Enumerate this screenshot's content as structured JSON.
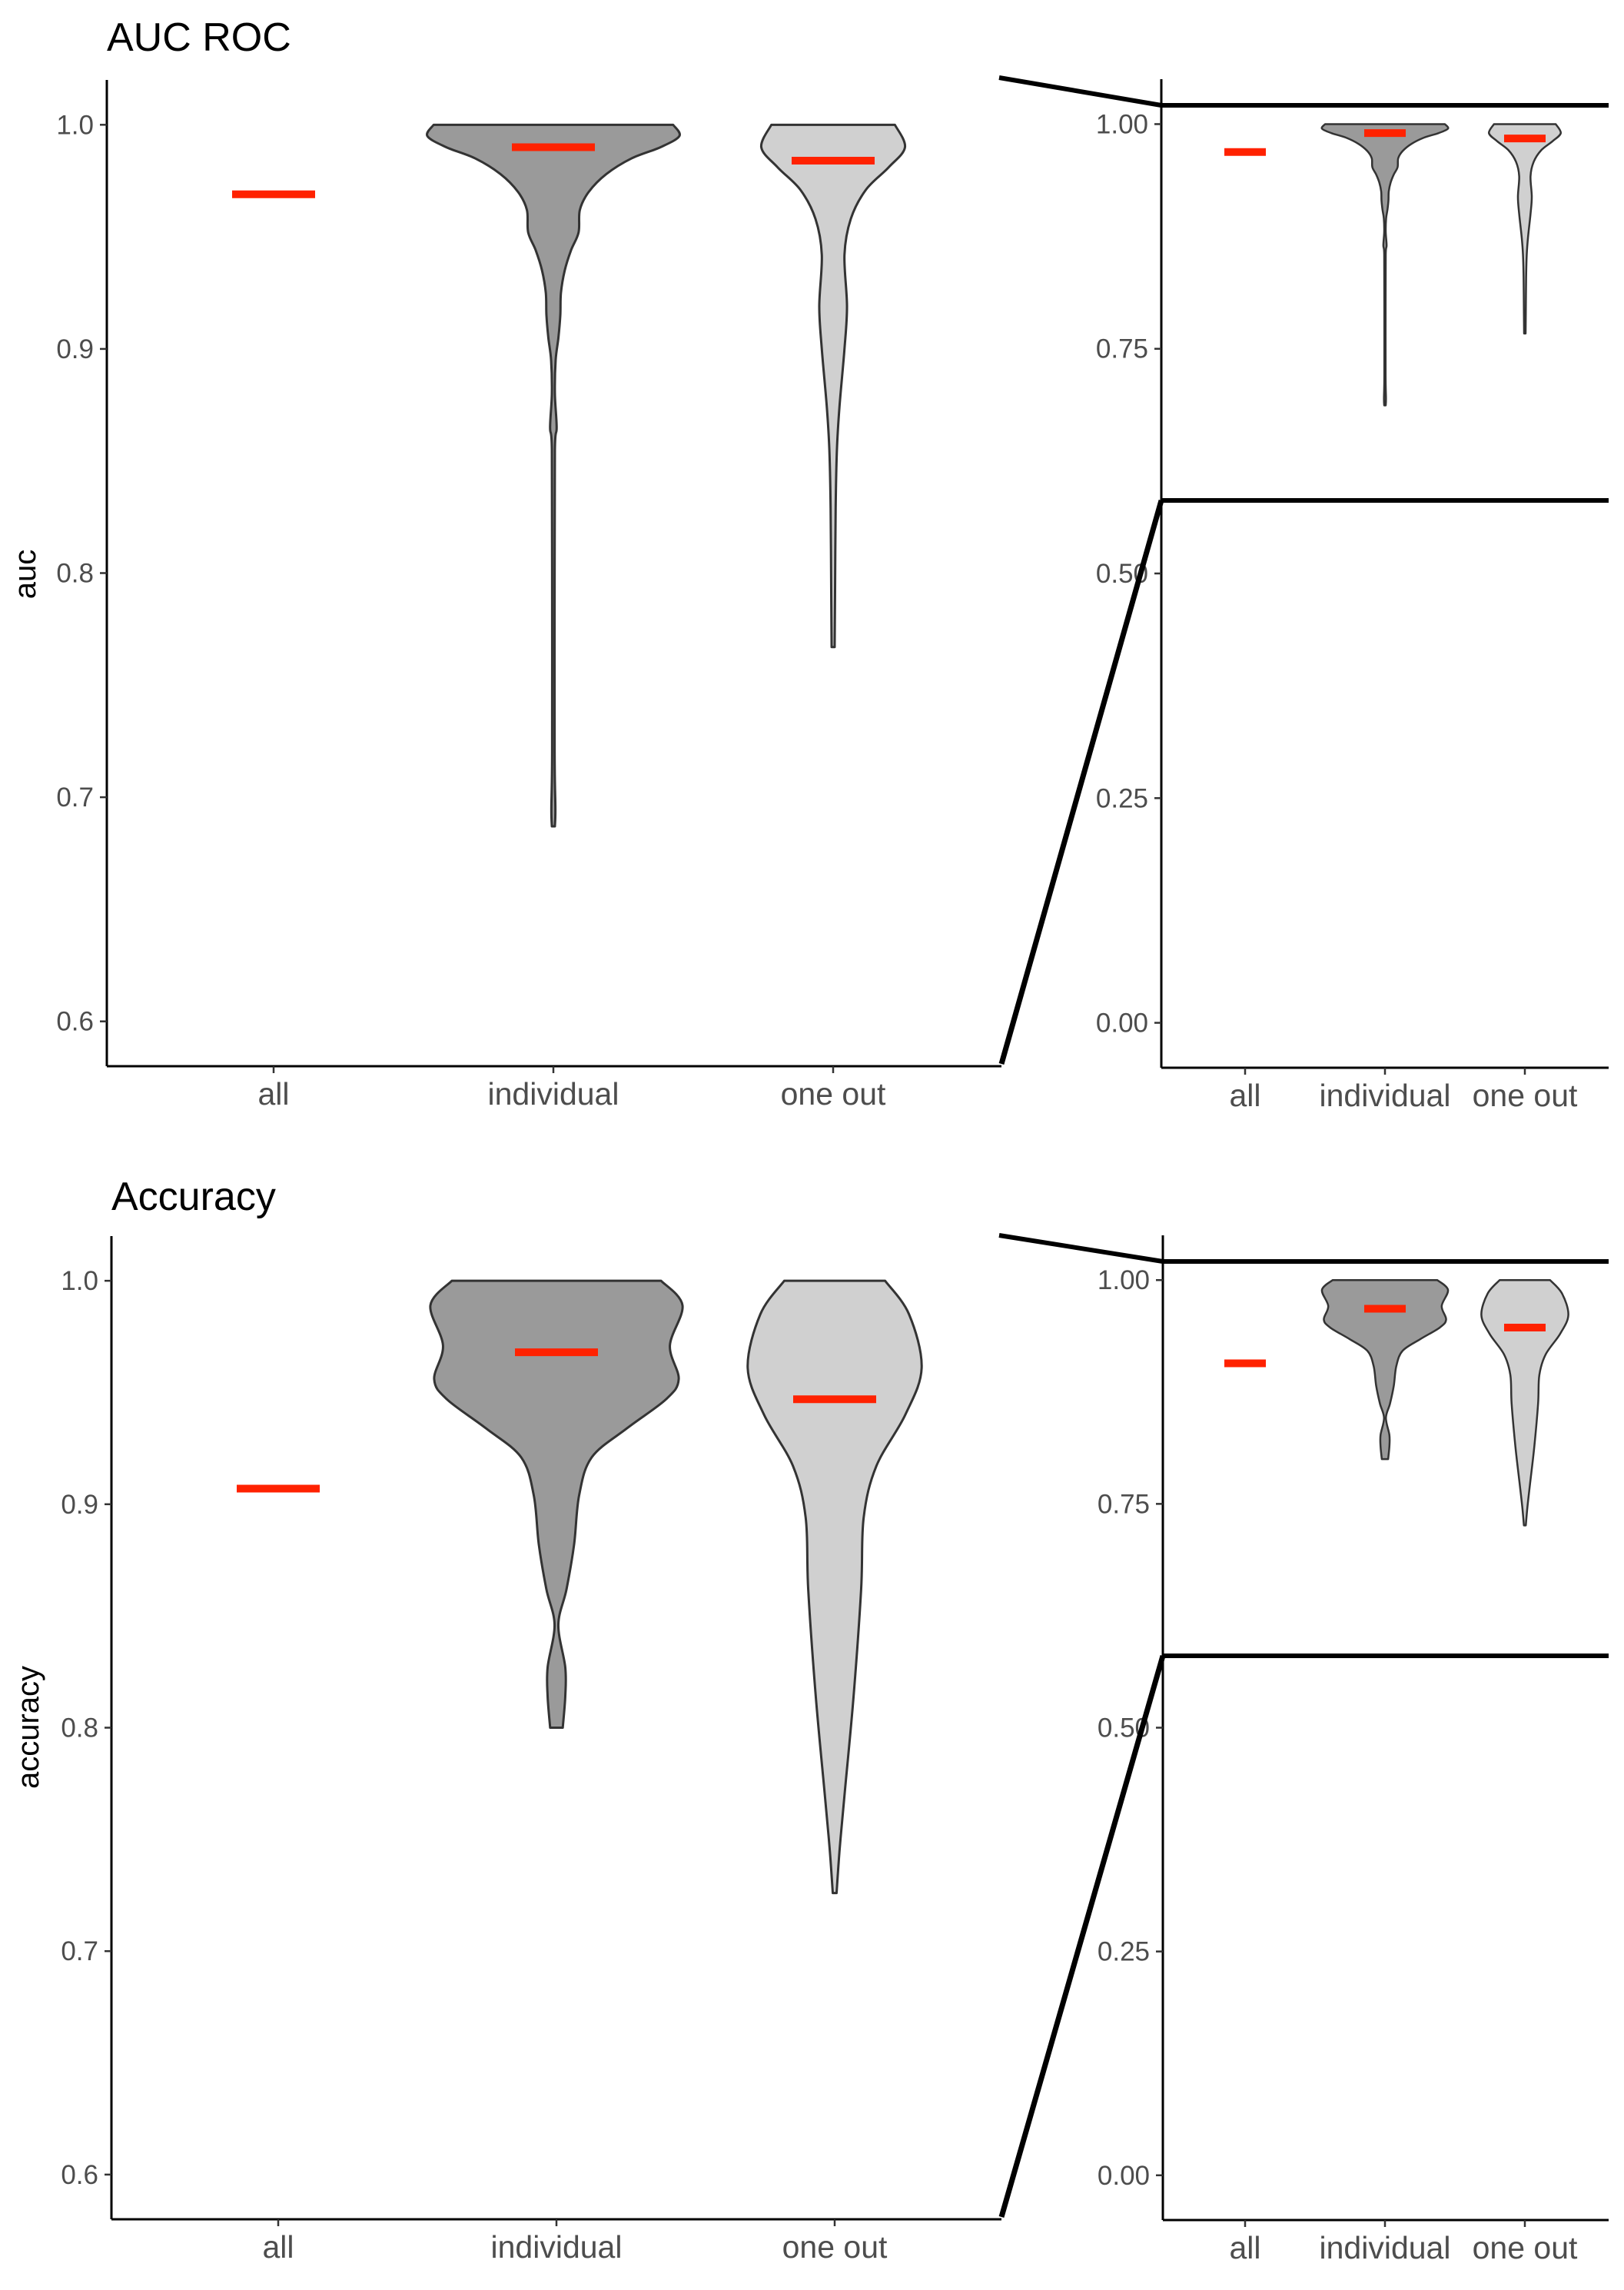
{
  "chart_data": [
    {
      "type": "violin",
      "title": "AUC ROC",
      "ylabel": "auc",
      "categories": [
        "all",
        "individual",
        "one out"
      ],
      "means": [
        0.969,
        0.99,
        0.984
      ],
      "mean_color": "#ff2200",
      "main_panel": {
        "ylim": [
          0.58,
          1.02
        ],
        "yticks": [
          0.6,
          0.7,
          0.8,
          0.9,
          1.0
        ],
        "ytick_labels": [
          "0.6",
          "0.7",
          "0.8",
          "0.9",
          "1.0"
        ]
      },
      "zoom_panel": {
        "ylim": [
          -0.05,
          1.05
        ],
        "yticks": [
          0,
          0.25,
          0.5,
          0.75,
          1.0
        ],
        "ytick_labels": [
          "0.00",
          "0.25",
          "0.50",
          "0.75",
          "1.00"
        ]
      },
      "violins": [
        null,
        {
          "fill": "#9a9a9a",
          "density": [
            [
              1.0,
              0.95
            ],
            [
              0.995,
              1.0
            ],
            [
              0.99,
              0.85
            ],
            [
              0.985,
              0.62
            ],
            [
              0.978,
              0.42
            ],
            [
              0.97,
              0.28
            ],
            [
              0.962,
              0.21
            ],
            [
              0.952,
              0.2
            ],
            [
              0.944,
              0.14
            ],
            [
              0.935,
              0.09
            ],
            [
              0.925,
              0.06
            ],
            [
              0.915,
              0.055
            ],
            [
              0.905,
              0.04
            ],
            [
              0.895,
              0.018
            ],
            [
              0.88,
              0.012
            ],
            [
              0.865,
              0.026
            ],
            [
              0.855,
              0.012
            ],
            [
              0.8,
              0.01
            ],
            [
              0.72,
              0.01
            ],
            [
              0.695,
              0.016
            ],
            [
              0.687,
              0.012
            ]
          ]
        },
        {
          "fill": "#d0d0d0",
          "density": [
            [
              1.0,
              0.49
            ],
            [
              0.99,
              0.57
            ],
            [
              0.981,
              0.44
            ],
            [
              0.971,
              0.26
            ],
            [
              0.958,
              0.14
            ],
            [
              0.942,
              0.09
            ],
            [
              0.919,
              0.11
            ],
            [
              0.9,
              0.09
            ],
            [
              0.874,
              0.05
            ],
            [
              0.855,
              0.03
            ],
            [
              0.829,
              0.02
            ],
            [
              0.79,
              0.015
            ],
            [
              0.767,
              0.012
            ]
          ]
        }
      ]
    },
    {
      "type": "violin",
      "title": "Accuracy",
      "ylabel": "accuracy",
      "categories": [
        "all",
        "individual",
        "one out"
      ],
      "means": [
        0.907,
        0.968,
        0.947
      ],
      "mean_color": "#ff2200",
      "main_panel": {
        "ylim": [
          0.58,
          1.02
        ],
        "yticks": [
          0.6,
          0.7,
          0.8,
          0.9,
          1.0
        ],
        "ytick_labels": [
          "0.6",
          "0.7",
          "0.8",
          "0.9",
          "1.0"
        ]
      },
      "zoom_panel": {
        "ylim": [
          -0.05,
          1.05
        ],
        "yticks": [
          0,
          0.25,
          0.5,
          0.75,
          1.0
        ],
        "ytick_labels": [
          "0.00",
          "0.25",
          "0.50",
          "0.75",
          "1.00"
        ]
      },
      "violins": [
        null,
        {
          "fill": "#9a9a9a",
          "density": [
            [
              1.0,
              0.83
            ],
            [
              0.989,
              1.0
            ],
            [
              0.971,
              0.9
            ],
            [
              0.956,
              0.97
            ],
            [
              0.947,
              0.87
            ],
            [
              0.934,
              0.56
            ],
            [
              0.921,
              0.28
            ],
            [
              0.904,
              0.18
            ],
            [
              0.882,
              0.14
            ],
            [
              0.862,
              0.08
            ],
            [
              0.846,
              0.015
            ],
            [
              0.827,
              0.07
            ],
            [
              0.814,
              0.07
            ],
            [
              0.8,
              0.05
            ]
          ]
        },
        {
          "fill": "#d0d0d0",
          "density": [
            [
              1.0,
              0.4
            ],
            [
              0.985,
              0.59
            ],
            [
              0.961,
              0.69
            ],
            [
              0.94,
              0.56
            ],
            [
              0.917,
              0.33
            ],
            [
              0.894,
              0.23
            ],
            [
              0.862,
              0.21
            ],
            [
              0.814,
              0.15
            ],
            [
              0.771,
              0.08
            ],
            [
              0.746,
              0.04
            ],
            [
              0.726,
              0.015
            ]
          ]
        }
      ]
    }
  ]
}
